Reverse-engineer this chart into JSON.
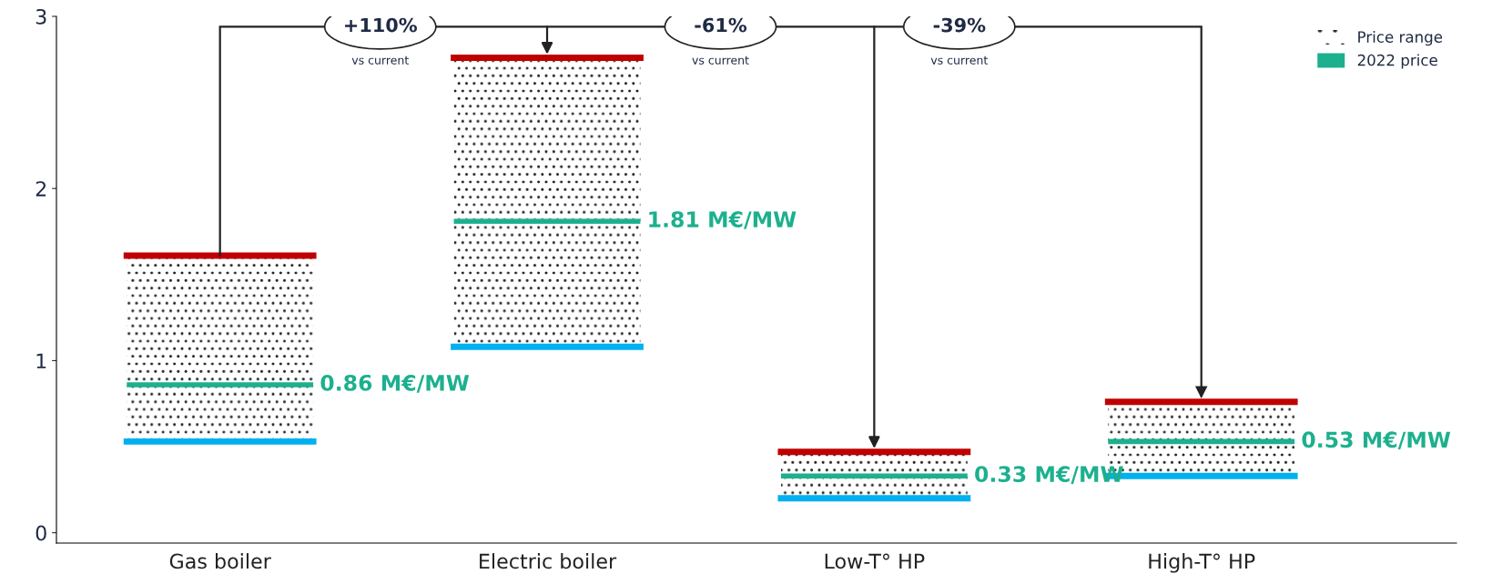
{
  "chart_data": {
    "type": "box",
    "categories": [
      "Gas boiler",
      "Electric boiler",
      "Low-T° HP",
      "High-T° HP"
    ],
    "series": [
      {
        "name": "Price range",
        "color": "#222222",
        "boxes": [
          {
            "low": 0.53,
            "q1": 0.53,
            "median": 0.86,
            "q3": 1.61,
            "high": 1.61
          },
          {
            "low": 1.08,
            "q1": 1.08,
            "median": 1.81,
            "q3": 2.76,
            "high": 2.76
          },
          {
            "low": 0.2,
            "q1": 0.2,
            "median": 0.33,
            "q3": 0.47,
            "high": 0.47
          },
          {
            "low": 0.33,
            "q1": 0.33,
            "median": 0.53,
            "q3": 0.76,
            "high": 0.76
          }
        ],
        "value_labels": [
          "0.86 M€/MW",
          "1.81 M€/MW",
          "0.33 M€/MW",
          "0.53 M€/MW"
        ]
      }
    ],
    "colors": [
      "#c00000",
      "#1db08e",
      "#00b0f0"
    ],
    "ylim": [
      -0.06,
      3
    ],
    "yticks": [
      0,
      1,
      2,
      3
    ],
    "annotations": [
      "+110%",
      "vs current",
      "-61%",
      "vs current",
      "-39%",
      "vs current",
      "2022 price"
    ],
    "legend": "top right",
    "grid": false
  }
}
